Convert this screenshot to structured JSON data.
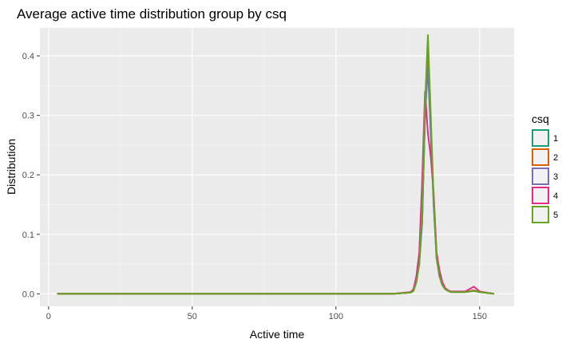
{
  "chart_data": {
    "type": "line",
    "title": "Average active time distribution group by csq",
    "xlabel": "Active time",
    "ylabel": "Distribution",
    "xlim": [
      -3,
      162
    ],
    "ylim": [
      -0.021,
      0.447
    ],
    "x_ticks": [
      0,
      50,
      100,
      150
    ],
    "y_ticks": [
      0.0,
      0.1,
      0.2,
      0.3,
      0.4
    ],
    "y_tick_labels": [
      "0.0",
      "0.1",
      "0.2",
      "0.3",
      "0.4"
    ],
    "grid": true,
    "legend": {
      "title": "csq",
      "position": "right"
    },
    "series": [
      {
        "name": "1",
        "color": "#1B9E77",
        "x": [
          3,
          5,
          120,
          126,
          127,
          128,
          129,
          130,
          131,
          132,
          133,
          134,
          135,
          136,
          137,
          138,
          139,
          140,
          142,
          145,
          148,
          150,
          155
        ],
        "y": [
          0,
          0,
          0,
          0.002,
          0.005,
          0.02,
          0.05,
          0.12,
          0.3,
          0.39,
          0.27,
          0.15,
          0.06,
          0.03,
          0.015,
          0.008,
          0.005,
          0.003,
          0.003,
          0.003,
          0.005,
          0.003,
          0
        ]
      },
      {
        "name": "2",
        "color": "#D95F02",
        "x": [
          3,
          5,
          120,
          126,
          127,
          128,
          129,
          130,
          131,
          132,
          133,
          134,
          135,
          136,
          137,
          138,
          139,
          140,
          142,
          145,
          148,
          150,
          155
        ],
        "y": [
          0,
          0,
          0,
          0.002,
          0.006,
          0.025,
          0.06,
          0.13,
          0.31,
          0.4,
          0.28,
          0.16,
          0.07,
          0.03,
          0.015,
          0.008,
          0.005,
          0.003,
          0.003,
          0.003,
          0.006,
          0.003,
          0
        ]
      },
      {
        "name": "3",
        "color": "#7570B3",
        "x": [
          3,
          5,
          120,
          126,
          127,
          128,
          129,
          130,
          131,
          132,
          133,
          134,
          135,
          136,
          137,
          138,
          139,
          140,
          142,
          145,
          148,
          150,
          155
        ],
        "y": [
          0,
          0,
          0,
          0.002,
          0.005,
          0.02,
          0.055,
          0.12,
          0.3,
          0.38,
          0.27,
          0.15,
          0.065,
          0.03,
          0.015,
          0.008,
          0.005,
          0.003,
          0.003,
          0.003,
          0.005,
          0.003,
          0
        ]
      },
      {
        "name": "4",
        "color": "#E7298A",
        "x": [
          3,
          5,
          120,
          126,
          127,
          128,
          129,
          130,
          131,
          132,
          133,
          134,
          135,
          136,
          137,
          138,
          139,
          140,
          142,
          145,
          148,
          150,
          155
        ],
        "y": [
          0,
          0,
          0,
          0.003,
          0.008,
          0.03,
          0.07,
          0.19,
          0.34,
          0.27,
          0.23,
          0.17,
          0.07,
          0.04,
          0.02,
          0.01,
          0.006,
          0.004,
          0.004,
          0.004,
          0.012,
          0.004,
          0
        ]
      },
      {
        "name": "5",
        "color": "#66A61E",
        "x": [
          3,
          5,
          120,
          126,
          127,
          128,
          129,
          130,
          131,
          132,
          133,
          134,
          135,
          136,
          137,
          138,
          139,
          140,
          142,
          145,
          148,
          150,
          155
        ],
        "y": [
          0,
          0,
          0,
          0.002,
          0.005,
          0.02,
          0.05,
          0.14,
          0.32,
          0.435,
          0.3,
          0.16,
          0.06,
          0.03,
          0.015,
          0.008,
          0.005,
          0.003,
          0.003,
          0.003,
          0.005,
          0.003,
          0
        ]
      }
    ]
  }
}
